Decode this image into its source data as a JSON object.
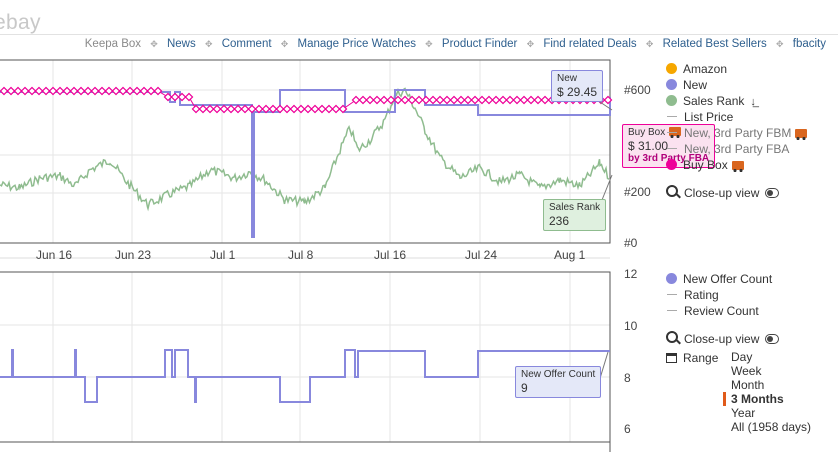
{
  "brand": {
    "logo_text": "ebay"
  },
  "nav": {
    "keepa_box": "Keepa Box",
    "links": [
      "News",
      "Comment",
      "Manage Price Watches",
      "Product Finder",
      "Find related Deals",
      "Related Best Sellers",
      "fbacity"
    ]
  },
  "top_chart": {
    "y_ticks": [
      "#600",
      "#200",
      "#0"
    ],
    "x_ticks": [
      "Jun 16",
      "Jun 23",
      "Jul 1",
      "Jul 8",
      "Jul 16",
      "Jul 24",
      "Aug 1"
    ],
    "tooltips": {
      "new": {
        "label": "New",
        "value": "$ 29.45"
      },
      "buy_box": {
        "label": "Buy Box",
        "value": "$ 31.00",
        "sub": "by 3rd Party FBA"
      },
      "sales_rank": {
        "label": "Sales Rank",
        "value": "236"
      }
    },
    "legend": [
      {
        "label": "Amazon",
        "color": "#f6a700",
        "kind": "dot"
      },
      {
        "label": "New",
        "color": "#8888dd",
        "kind": "dot"
      },
      {
        "label": "Sales Rank",
        "color": "#8fbc8f",
        "kind": "dot"
      },
      {
        "label": "List Price",
        "kind": "line"
      },
      {
        "label": "New, 3rd Party FBM",
        "kind": "line"
      },
      {
        "label": "New, 3rd Party FBA",
        "kind": "line"
      },
      {
        "label": "Buy Box",
        "color": "#ee0099",
        "kind": "dot"
      }
    ],
    "close_up": "Close-up view"
  },
  "bottom_chart": {
    "y_ticks": [
      "12",
      "10",
      "8",
      "6"
    ],
    "tooltip": {
      "label": "New Offer Count",
      "value": "9"
    },
    "legend": [
      {
        "label": "New Offer Count",
        "color": "#8888dd",
        "kind": "dot"
      },
      {
        "label": "Rating",
        "kind": "line"
      },
      {
        "label": "Review Count",
        "kind": "line"
      }
    ],
    "close_up": "Close-up view",
    "range_label": "Range",
    "range_options": [
      "Day",
      "Week",
      "Month",
      "3 Months",
      "Year",
      "All (1958 days)"
    ],
    "range_selected": "3 Months"
  },
  "colors": {
    "new": "#8888dd",
    "buy_box": "#ee0099",
    "sales_rank": "#8fbc8f",
    "amazon": "#f6a700",
    "accent": "#e05a1a"
  }
}
